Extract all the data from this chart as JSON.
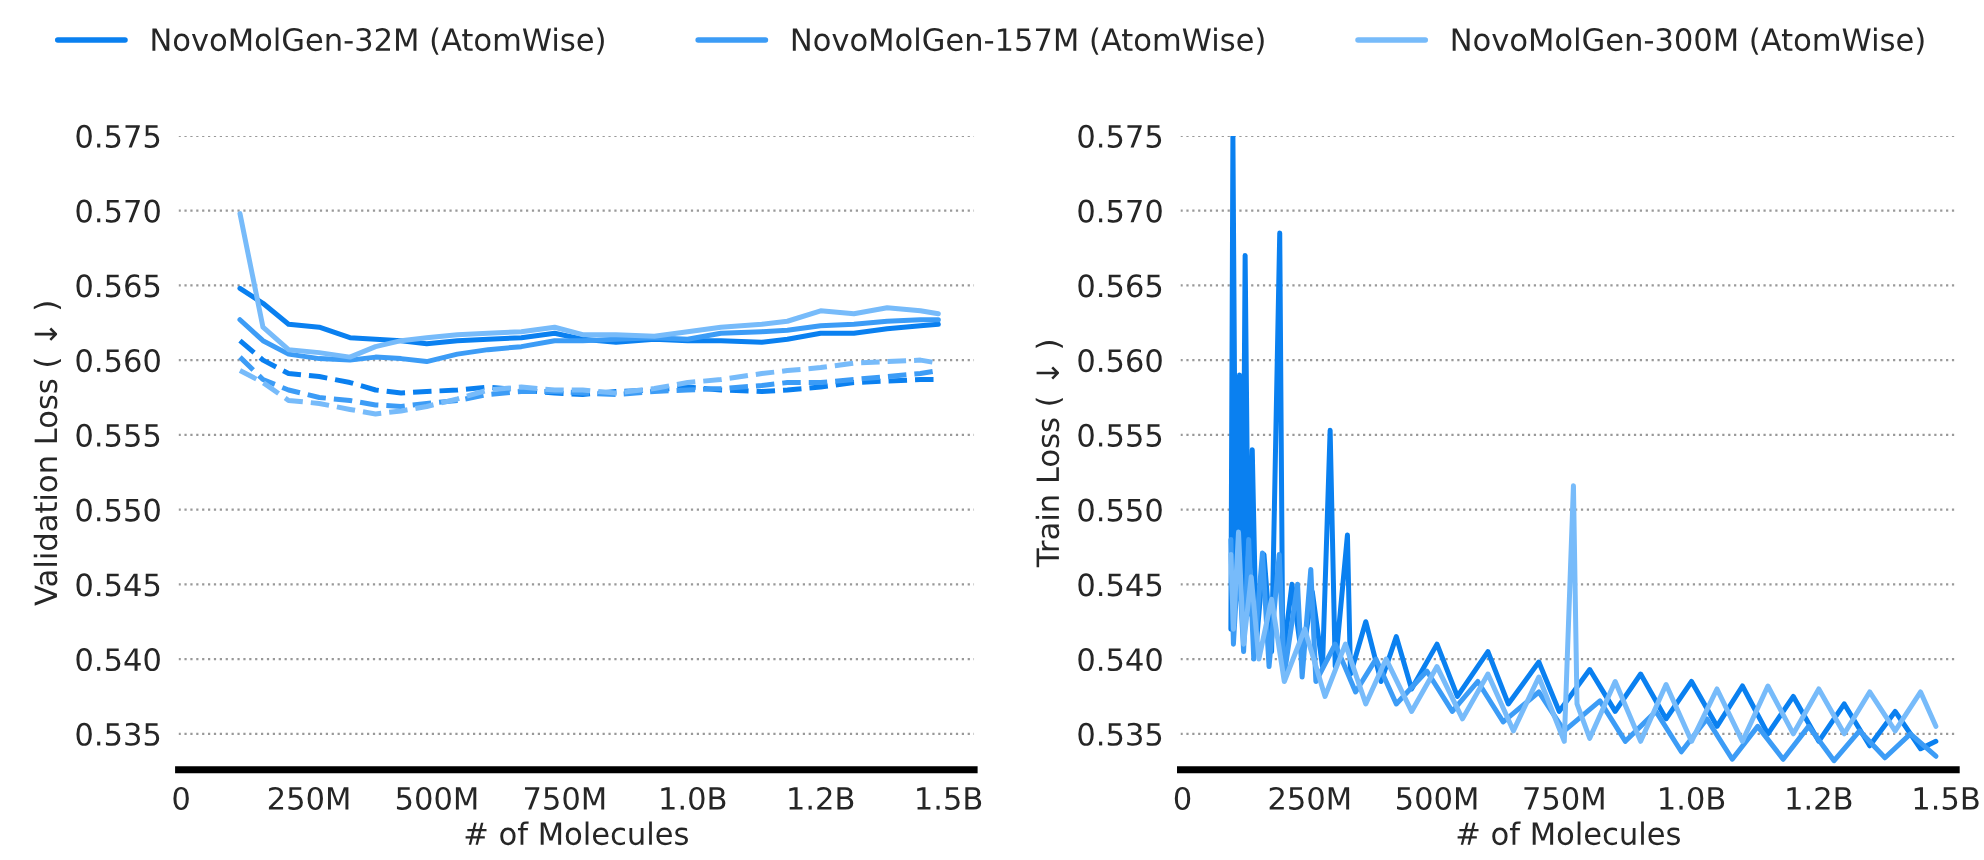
{
  "chart_data": [
    {
      "type": "line",
      "ylabel": "Validation Loss ( ↓ )",
      "xlabel": "# of Molecules",
      "legend": "top",
      "grid": "y",
      "line_style": "solid",
      "marker": "none",
      "xlim": [
        -5000000.0,
        1550000000.0
      ],
      "xticks": [
        0,
        {
          "value": 250000000.0,
          "label": "250M"
        },
        {
          "value": 500000000.0,
          "label": "500M"
        },
        {
          "value": 750000000.0,
          "label": "750M"
        },
        {
          "value": 1000000000.0,
          "label": "1.0B"
        },
        {
          "value": 1250000000.0,
          "label": "1.2B"
        },
        {
          "value": 1500000000.0,
          "label": "1.5B"
        }
      ],
      "ylim": [
        0.5326,
        0.575
      ],
      "yticks": [
        {
          "value": 0.535,
          "label": "0.535"
        },
        {
          "value": 0.54,
          "label": "0.540"
        },
        {
          "value": 0.545,
          "label": "0.545"
        },
        {
          "value": 0.55,
          "label": "0.550"
        },
        {
          "value": 0.555,
          "label": "0.555"
        },
        {
          "value": 0.56,
          "label": "0.560"
        },
        {
          "value": 0.565,
          "label": "0.565"
        },
        {
          "value": 0.57,
          "label": "0.570"
        },
        {
          "value": 0.575,
          "label": "0.575"
        }
      ],
      "x": [
        115000000.0,
        160000000.0,
        210000000.0,
        270000000.0,
        330000000.0,
        380000000.0,
        430000000.0,
        480000000.0,
        540000000.0,
        600000000.0,
        665000000.0,
        730000000.0,
        785000000.0,
        850000000.0,
        925000000.0,
        990000000.0,
        1055000000.0,
        1135000000.0,
        1185000000.0,
        1250000000.0,
        1315000000.0,
        1380000000.0,
        1445000000.0,
        1480000000.0
      ],
      "series": [
        {
          "name": "NovoMolGen-32M (AtomWise)",
          "color": "#0a80f0",
          "values": [
            0.5648,
            0.5638,
            0.5624,
            0.5622,
            0.5615,
            0.5614,
            0.5613,
            0.5611,
            0.5613,
            0.5614,
            0.5615,
            0.5618,
            0.5614,
            0.5612,
            0.5614,
            0.5613,
            0.5613,
            0.5612,
            0.5614,
            0.5618,
            0.5618,
            0.5621,
            0.5623,
            0.5624
          ]
        },
        {
          "name": "NovoMolGen-157M (AtomWise)",
          "color": "#3c9cf6",
          "values": [
            0.5627,
            0.5613,
            0.5604,
            0.5601,
            0.56,
            0.5602,
            0.5601,
            0.5599,
            0.5604,
            0.5607,
            0.5609,
            0.5613,
            0.5613,
            0.5614,
            0.5615,
            0.5614,
            0.5618,
            0.5619,
            0.562,
            0.5623,
            0.5624,
            0.5626,
            0.5627,
            0.5627
          ]
        },
        {
          "name": "NovoMolGen-300M (AtomWise)",
          "color": "#77bbfa",
          "values": [
            0.5698,
            0.5622,
            0.5607,
            0.5605,
            0.5602,
            0.5609,
            0.5613,
            0.5615,
            0.5617,
            0.5618,
            0.5619,
            0.5622,
            0.5617,
            0.5617,
            0.5616,
            0.5619,
            0.5622,
            0.5624,
            0.5626,
            0.5633,
            0.5631,
            0.5635,
            0.5633,
            0.5631
          ]
        },
        {
          "color": "#0a80f0",
          "line_style": "dashed",
          "values": [
            0.5613,
            0.56,
            0.5591,
            0.5589,
            0.5585,
            0.558,
            0.5578,
            0.5579,
            0.558,
            0.5582,
            0.558,
            0.5578,
            0.5577,
            0.5579,
            0.558,
            0.5582,
            0.558,
            0.5579,
            0.558,
            0.5582,
            0.5585,
            0.5586,
            0.5587,
            0.5587
          ]
        },
        {
          "color": "#3c9cf6",
          "line_style": "dashed",
          "values": [
            0.5602,
            0.5587,
            0.558,
            0.5575,
            0.5573,
            0.557,
            0.5569,
            0.5571,
            0.5573,
            0.5577,
            0.5579,
            0.5579,
            0.5578,
            0.5577,
            0.5579,
            0.558,
            0.5581,
            0.5583,
            0.5585,
            0.5585,
            0.5587,
            0.5589,
            0.5591,
            0.5593
          ]
        },
        {
          "color": "#77bbfa",
          "line_style": "dashed",
          "values": [
            0.5593,
            0.5585,
            0.5573,
            0.5571,
            0.5567,
            0.5564,
            0.5566,
            0.5569,
            0.5574,
            0.558,
            0.5582,
            0.558,
            0.558,
            0.5578,
            0.5581,
            0.5585,
            0.5587,
            0.5591,
            0.5593,
            0.5595,
            0.5598,
            0.5599,
            0.56,
            0.5598
          ]
        }
      ]
    },
    {
      "type": "line",
      "ylabel": "Train Loss ( ↓ )",
      "xlabel": "# of Molecules",
      "grid": "y",
      "line_style": "solid",
      "marker": "none",
      "xlim": [
        -4000000.0,
        1520000000.0
      ],
      "xticks": [
        0,
        {
          "value": 250000000.0,
          "label": "250M"
        },
        {
          "value": 500000000.0,
          "label": "500M"
        },
        {
          "value": 750000000.0,
          "label": "750M"
        },
        {
          "value": 1000000000.0,
          "label": "1.0B"
        },
        {
          "value": 1250000000.0,
          "label": "1.2B"
        },
        {
          "value": 1500000000.0,
          "label": "1.5B"
        }
      ],
      "ylim": [
        0.5326,
        0.575
      ],
      "yticks": [
        {
          "value": 0.535,
          "label": "0.535"
        },
        {
          "value": 0.54,
          "label": "0.540"
        },
        {
          "value": 0.545,
          "label": "0.545"
        },
        {
          "value": 0.55,
          "label": "0.550"
        },
        {
          "value": 0.555,
          "label": "0.555"
        },
        {
          "value": 0.56,
          "label": "0.560"
        },
        {
          "value": 0.565,
          "label": "0.565"
        },
        {
          "value": 0.57,
          "label": "0.570"
        },
        {
          "value": 0.575,
          "label": "0.575"
        }
      ],
      "series": [
        {
          "color": "#0a80f0",
          "x": [
            95000000.0,
            99000000.0,
            105000000.0,
            112000000.0,
            118000000.0,
            123000000.0,
            130000000.0,
            137000000.0,
            145000000.0,
            160000000.0,
            175000000.0,
            191000000.0,
            197000000.0,
            215000000.0,
            235000000.0,
            255000000.0,
            275000000.0,
            290000000.0,
            300000000.0,
            324000000.0,
            330000000.0,
            360000000.0,
            390000000.0,
            420000000.0,
            450000000.0,
            500000000.0,
            540000000.0,
            600000000.0,
            640000000.0,
            700000000.0,
            740000000.0,
            800000000.0,
            850000000.0,
            900000000.0,
            950000000.0,
            1000000000.0,
            1050000000.0,
            1100000000.0,
            1150000000.0,
            1200000000.0,
            1250000000.0,
            1300000000.0,
            1350000000.0,
            1400000000.0,
            1450000000.0,
            1480000000.0
          ],
          "values": [
            0.542,
            0.575,
            0.544,
            0.559,
            0.542,
            0.567,
            0.543,
            0.554,
            0.541,
            0.547,
            0.5405,
            0.5685,
            0.54,
            0.545,
            0.54,
            0.5445,
            0.5395,
            0.5553,
            0.5395,
            0.5483,
            0.539,
            0.5425,
            0.5385,
            0.5415,
            0.538,
            0.541,
            0.5375,
            0.5405,
            0.537,
            0.5398,
            0.5365,
            0.5393,
            0.5365,
            0.539,
            0.536,
            0.5385,
            0.5355,
            0.5382,
            0.535,
            0.5375,
            0.5345,
            0.537,
            0.5342,
            0.5365,
            0.534,
            0.5345
          ]
        },
        {
          "color": "#3c9cf6",
          "x": [
            95000000.0,
            100000000.0,
            110000000.0,
            120000000.0,
            130000000.0,
            140000000.0,
            157000000.0,
            170000000.0,
            190000000.0,
            200000000.0,
            226000000.0,
            235000000.0,
            252000000.0,
            262000000.0,
            300000000.0,
            340000000.0,
            380000000.0,
            420000000.0,
            480000000.0,
            530000000.0,
            580000000.0,
            630000000.0,
            700000000.0,
            750000000.0,
            820000000.0,
            870000000.0,
            930000000.0,
            980000000.0,
            1030000000.0,
            1080000000.0,
            1130000000.0,
            1180000000.0,
            1230000000.0,
            1280000000.0,
            1330000000.0,
            1380000000.0,
            1430000000.0,
            1480000000.0
          ],
          "values": [
            0.548,
            0.541,
            0.547,
            0.5405,
            0.548,
            0.54,
            0.5471,
            0.5395,
            0.547,
            0.539,
            0.545,
            0.5388,
            0.546,
            0.5385,
            0.541,
            0.5378,
            0.54,
            0.537,
            0.5392,
            0.5365,
            0.5385,
            0.5358,
            0.5378,
            0.5352,
            0.5372,
            0.5345,
            0.5365,
            0.5338,
            0.536,
            0.5333,
            0.5355,
            0.5333,
            0.5355,
            0.5332,
            0.5352,
            0.5334,
            0.535,
            0.5335
          ]
        },
        {
          "color": "#77bbfa",
          "x": [
            95000000.0,
            100000000.0,
            110000000.0,
            120000000.0,
            135000000.0,
            150000000.0,
            175000000.0,
            200000000.0,
            240000000.0,
            280000000.0,
            320000000.0,
            360000000.0,
            400000000.0,
            450000000.0,
            500000000.0,
            550000000.0,
            600000000.0,
            650000000.0,
            700000000.0,
            750000000.0,
            768000000.0,
            775000000.0,
            800000000.0,
            850000000.0,
            900000000.0,
            950000000.0,
            1000000000.0,
            1050000000.0,
            1100000000.0,
            1150000000.0,
            1200000000.0,
            1250000000.0,
            1300000000.0,
            1350000000.0,
            1400000000.0,
            1450000000.0,
            1480000000.0
          ],
          "values": [
            0.547,
            0.542,
            0.5485,
            0.541,
            0.5455,
            0.54,
            0.544,
            0.5385,
            0.542,
            0.5375,
            0.541,
            0.537,
            0.54,
            0.5365,
            0.5395,
            0.536,
            0.539,
            0.5352,
            0.5388,
            0.5345,
            0.5516,
            0.537,
            0.5347,
            0.5385,
            0.5345,
            0.5383,
            0.5345,
            0.538,
            0.5345,
            0.5382,
            0.535,
            0.538,
            0.535,
            0.5378,
            0.5352,
            0.5378,
            0.5355
          ]
        }
      ]
    }
  ]
}
